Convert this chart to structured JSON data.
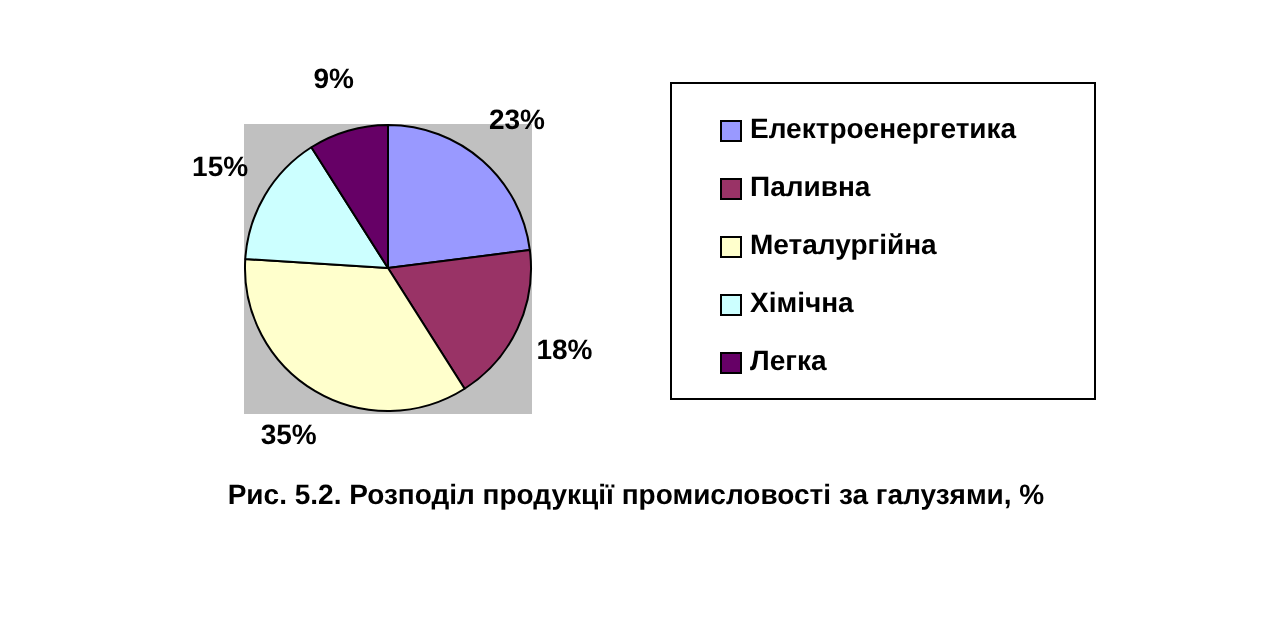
{
  "chart_data": {
    "type": "pie",
    "title": "Рис. 5.2.  Розподіл продукції промисловості за галузями, %",
    "categories": [
      "Електроенергетика",
      "Паливна",
      "Металургійна",
      "Хімічна",
      "Легка"
    ],
    "values": [
      23,
      18,
      35,
      15,
      9
    ],
    "colors": [
      "#9999ff",
      "#993366",
      "#ffffcc",
      "#ccffff",
      "#660066"
    ],
    "value_labels": [
      "23%",
      "18%",
      "35%",
      "15%",
      "9%"
    ],
    "legend": "right"
  }
}
